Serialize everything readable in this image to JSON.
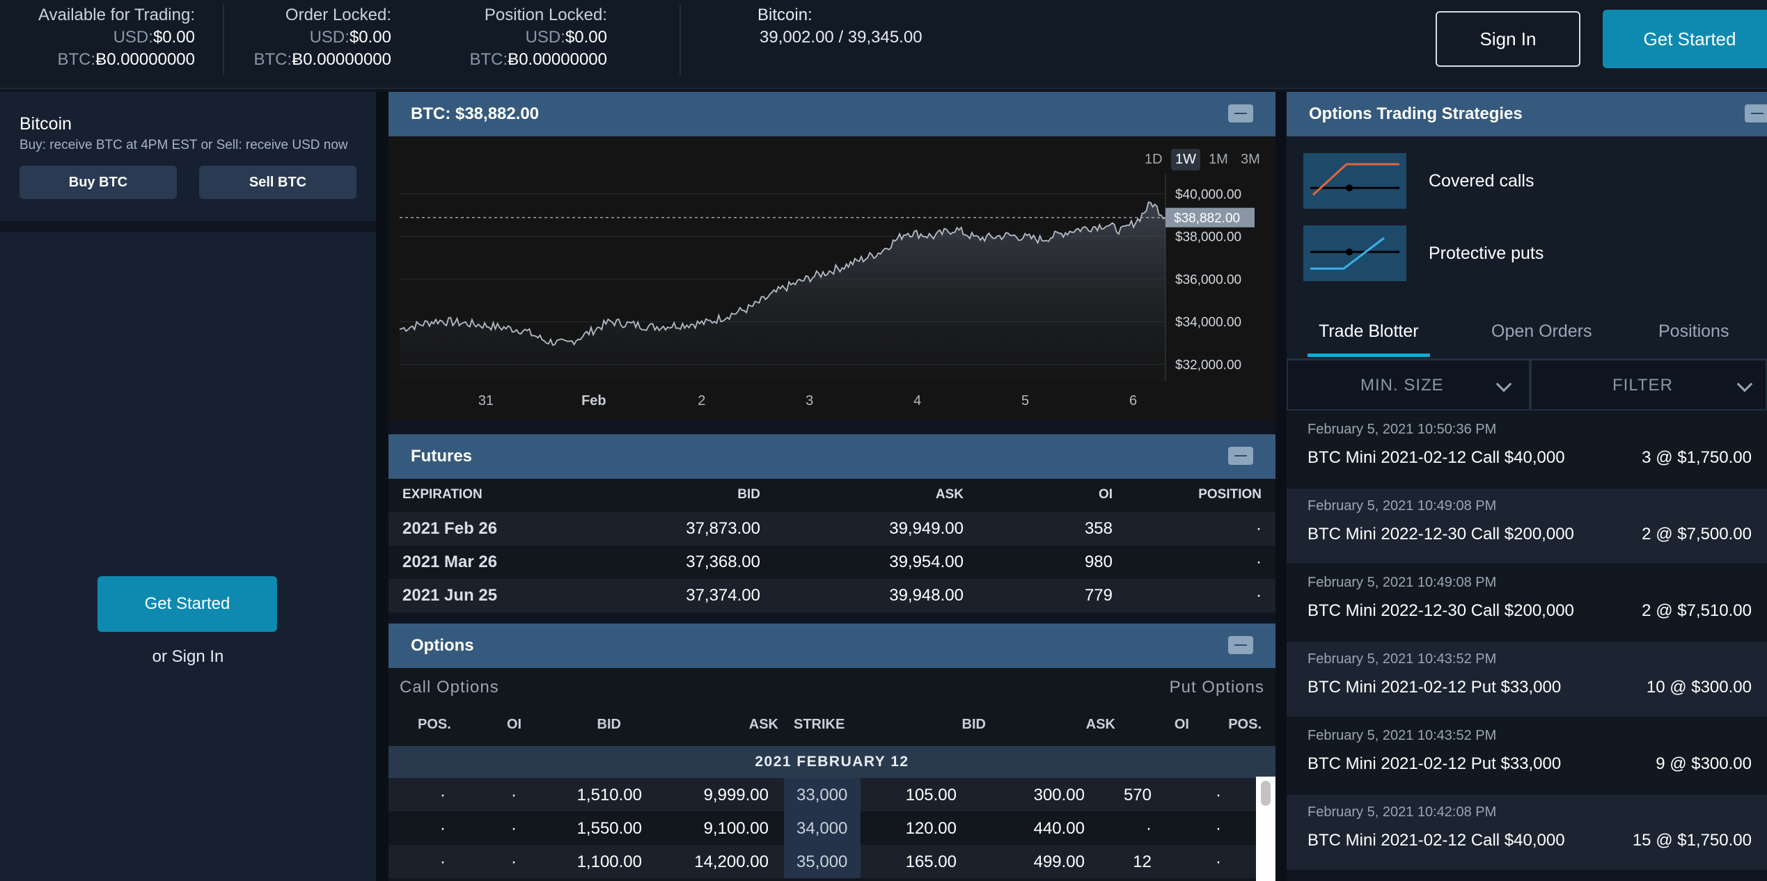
{
  "header": {
    "available": {
      "title": "Available for Trading:",
      "usd_label": "USD:",
      "usd_value": "$0.00",
      "btc_label": "BTC:",
      "btc_value": "Ƀ0.00000000"
    },
    "order_locked": {
      "title": "Order Locked:",
      "usd_label": "USD:",
      "usd_value": "$0.00",
      "btc_label": "BTC:",
      "btc_value": "Ƀ0.00000000"
    },
    "position_locked": {
      "title": "Position Locked:",
      "usd_label": "USD:",
      "usd_value": "$0.00",
      "btc_label": "BTC:",
      "btc_value": "Ƀ0.00000000"
    },
    "quote_title": "Bitcoin:",
    "quote_value": "39,002.00 / 39,345.00",
    "sign_in": "Sign In",
    "get_started": "Get Started"
  },
  "left": {
    "title": "Bitcoin",
    "subtitle": "Buy: receive BTC at 4PM EST or Sell: receive USD now",
    "buy_label": "Buy BTC",
    "sell_label": "Sell BTC",
    "get_started": "Get Started",
    "or_sign_in": "or Sign In"
  },
  "chart_panel": {
    "title": "BTC: $38,882.00",
    "ranges": [
      "1D",
      "1W",
      "1M",
      "3M"
    ],
    "selected_range": "1W"
  },
  "chart_data": {
    "type": "area",
    "current_label": "$38,882.00",
    "current_value": 38882,
    "ylim": [
      31200,
      40600
    ],
    "yticks": [
      40000,
      38000,
      36000,
      34000,
      32000
    ],
    "ytick_labels": [
      "$40,000.00",
      "$38,000.00",
      "$36,000.00",
      "$34,000.00",
      "$32,000.00"
    ],
    "xticks": [
      0.55,
      1.55,
      2.55,
      3.55,
      4.55,
      5.55,
      6.55
    ],
    "xtick_labels": [
      "31",
      "Feb",
      "2",
      "3",
      "4",
      "5",
      "6"
    ],
    "xlim": [
      -0.25,
      6.85
    ],
    "x": [
      -0.25,
      0.1,
      0.5,
      0.9,
      1.1,
      1.3,
      1.7,
      2.1,
      2.6,
      3.0,
      3.3,
      3.55,
      3.9,
      4.2,
      4.45,
      4.7,
      4.9,
      5.1,
      5.4,
      5.7,
      6.0,
      6.3,
      6.45,
      6.6,
      6.72,
      6.85
    ],
    "values": [
      33650,
      34050,
      33850,
      33600,
      33100,
      32950,
      34000,
      33750,
      33950,
      34650,
      35550,
      36050,
      36650,
      37250,
      38200,
      38000,
      38350,
      37900,
      38050,
      37850,
      38300,
      38550,
      38250,
      38800,
      39600,
      38882
    ]
  },
  "futures": {
    "title": "Futures",
    "columns": [
      "EXPIRATION",
      "BID",
      "ASK",
      "OI",
      "POSITION"
    ],
    "rows": [
      {
        "expiration": "2021 Feb 26",
        "bid": "37,873.00",
        "ask": "39,949.00",
        "oi": "358",
        "position": "·"
      },
      {
        "expiration": "2021 Mar 26",
        "bid": "37,368.00",
        "ask": "39,954.00",
        "oi": "980",
        "position": "·"
      },
      {
        "expiration": "2021 Jun 25",
        "bid": "37,374.00",
        "ask": "39,948.00",
        "oi": "779",
        "position": "·"
      }
    ]
  },
  "options": {
    "title": "Options",
    "call_caption": "Call Options",
    "put_caption": "Put Options",
    "columns": [
      "POS.",
      "OI",
      "BID",
      "ASK",
      "STRIKE",
      "BID",
      "ASK",
      "OI",
      "POS."
    ],
    "expiry": "2021 FEBRUARY 12",
    "rows": [
      {
        "cpos": "·",
        "coi": "·",
        "cbid": "1,510.00",
        "cask": "9,999.00",
        "strike": "33,000",
        "pbid": "105.00",
        "pask": "300.00",
        "poi": "570",
        "ppos": "·"
      },
      {
        "cpos": "·",
        "coi": "·",
        "cbid": "1,550.00",
        "cask": "9,100.00",
        "strike": "34,000",
        "pbid": "120.00",
        "pask": "440.00",
        "poi": "·",
        "ppos": "·"
      },
      {
        "cpos": "·",
        "coi": "·",
        "cbid": "1,100.00",
        "cask": "14,200.00",
        "strike": "35,000",
        "pbid": "165.00",
        "pask": "499.00",
        "poi": "12",
        "ppos": "·"
      }
    ]
  },
  "strategies": {
    "title": "Options Trading Strategies",
    "items": [
      {
        "label": "Covered calls",
        "icon": "covered-call-chart-icon"
      },
      {
        "label": "Protective puts",
        "icon": "protective-put-chart-icon"
      }
    ]
  },
  "blotter": {
    "tabs": [
      "Trade Blotter",
      "Open Orders",
      "Positions"
    ],
    "active_tab": "Trade Blotter",
    "min_size": "MIN. SIZE",
    "filter": "FILTER",
    "trades": [
      {
        "time": "February 5, 2021 10:50:36 PM",
        "desc": "BTC Mini 2021-02-12 Call $40,000",
        "qty": "3 @ $1,750.00"
      },
      {
        "time": "February 5, 2021 10:49:08 PM",
        "desc": "BTC Mini 2022-12-30 Call $200,000",
        "qty": "2 @ $7,500.00"
      },
      {
        "time": "February 5, 2021 10:49:08 PM",
        "desc": "BTC Mini 2022-12-30 Call $200,000",
        "qty": "2 @ $7,510.00"
      },
      {
        "time": "February 5, 2021 10:43:52 PM",
        "desc": "BTC Mini 2021-02-12 Put $33,000",
        "qty": "10 @ $300.00"
      },
      {
        "time": "February 5, 2021 10:43:52 PM",
        "desc": "BTC Mini 2021-02-12 Put $33,000",
        "qty": "9 @ $300.00"
      },
      {
        "time": "February 5, 2021 10:42:08 PM",
        "desc": "BTC Mini 2021-02-12 Call $40,000",
        "qty": "15 @ $1,750.00"
      }
    ]
  },
  "colors": {
    "accent": "#0e8ab1",
    "panel_header": "#365a7d",
    "tab_underline": "#1ba6d6",
    "covered_call_line": "#e0663c",
    "protective_put_line": "#3ab0e6"
  }
}
